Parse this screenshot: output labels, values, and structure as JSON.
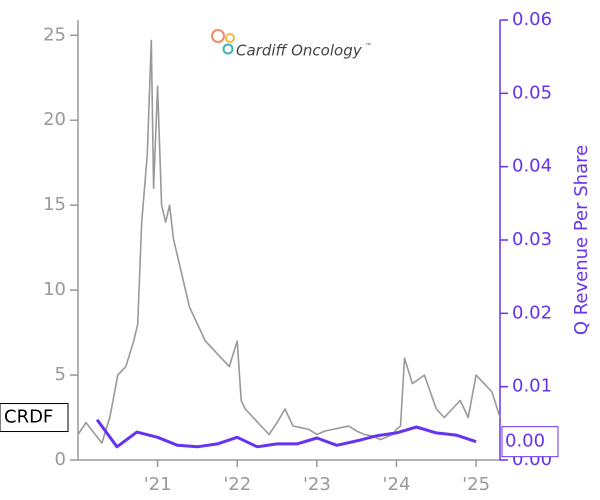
{
  "chart_data": {
    "type": "line",
    "logo_text": "Cardiff Oncology",
    "logo_mark": "™",
    "y2label": "Q Revenue Per Share",
    "xlim": [
      2020.0,
      2025.3
    ],
    "xticks": [
      {
        "value": 2021,
        "label": "'21"
      },
      {
        "value": 2022,
        "label": "'22"
      },
      {
        "value": 2023,
        "label": "'23"
      },
      {
        "value": 2024,
        "label": "'24"
      },
      {
        "value": 2025,
        "label": "'25"
      }
    ],
    "ylim": [
      0,
      25.9
    ],
    "yticks": [
      0,
      5,
      10,
      15,
      20,
      25
    ],
    "y2lim": [
      0,
      0.06
    ],
    "y2ticks": [
      {
        "value": 0,
        "label": "0.00"
      },
      0.01,
      0.02,
      0.03,
      0.04,
      0.05,
      0.06
    ],
    "series": [
      {
        "name": "CRDF",
        "color": "#999999",
        "x": [
          2020.0,
          2020.1,
          2020.2,
          2020.3,
          2020.4,
          2020.5,
          2020.6,
          2020.7,
          2020.75,
          2020.8,
          2020.87,
          2020.92,
          2020.95,
          2021.0,
          2021.05,
          2021.1,
          2021.15,
          2021.2,
          2021.3,
          2021.4,
          2021.5,
          2021.6,
          2021.7,
          2021.8,
          2021.9,
          2022.0,
          2022.05,
          2022.1,
          2022.2,
          2022.3,
          2022.4,
          2022.5,
          2022.6,
          2022.7,
          2022.8,
          2022.9,
          2023.0,
          2023.1,
          2023.2,
          2023.3,
          2023.4,
          2023.5,
          2023.6,
          2023.7,
          2023.8,
          2023.95,
          2024.0,
          2024.05,
          2024.1,
          2024.2,
          2024.35,
          2024.5,
          2024.6,
          2024.7,
          2024.8,
          2024.9,
          2025.0,
          2025.1,
          2025.2,
          2025.3
        ],
        "values": [
          1.5,
          2.2,
          1.6,
          1.0,
          2.5,
          5.0,
          5.5,
          7.0,
          8.0,
          14.0,
          18.0,
          24.7,
          16.0,
          22.0,
          15.0,
          14.0,
          15.0,
          13.0,
          11.0,
          9.0,
          8.0,
          7.0,
          6.5,
          6.0,
          5.5,
          7.0,
          3.5,
          3.0,
          2.5,
          2.0,
          1.5,
          2.2,
          3.0,
          2.0,
          1.9,
          1.8,
          1.5,
          1.7,
          1.8,
          1.9,
          2.0,
          1.7,
          1.5,
          1.4,
          1.2,
          1.5,
          1.8,
          2.0,
          6.0,
          4.5,
          5.0,
          3.0,
          2.5,
          3.0,
          3.5,
          2.5,
          5.0,
          4.5,
          4.0,
          2.5
        ]
      },
      {
        "color": "#6633ee",
        "axis": "y2",
        "x": [
          2020.24,
          2020.49,
          2020.74,
          2021.0,
          2021.25,
          2021.5,
          2021.75,
          2022.0,
          2022.25,
          2022.5,
          2022.75,
          2023.0,
          2023.25,
          2023.5,
          2023.75,
          2024.0,
          2024.25,
          2024.5,
          2024.75,
          2025.0
        ],
        "values": [
          0.0055,
          0.0018,
          0.0038,
          0.0031,
          0.002,
          0.0018,
          0.0022,
          0.0031,
          0.0018,
          0.0022,
          0.0022,
          0.003,
          0.002,
          0.0026,
          0.0033,
          0.0037,
          0.0045,
          0.0037,
          0.0034,
          0.0025
        ],
        "value_labels": [
          null,
          null,
          null,
          null,
          null,
          null,
          null,
          null,
          null,
          null,
          null,
          null,
          null,
          null,
          null,
          null,
          null,
          null,
          null,
          "0.00"
        ]
      }
    ]
  }
}
